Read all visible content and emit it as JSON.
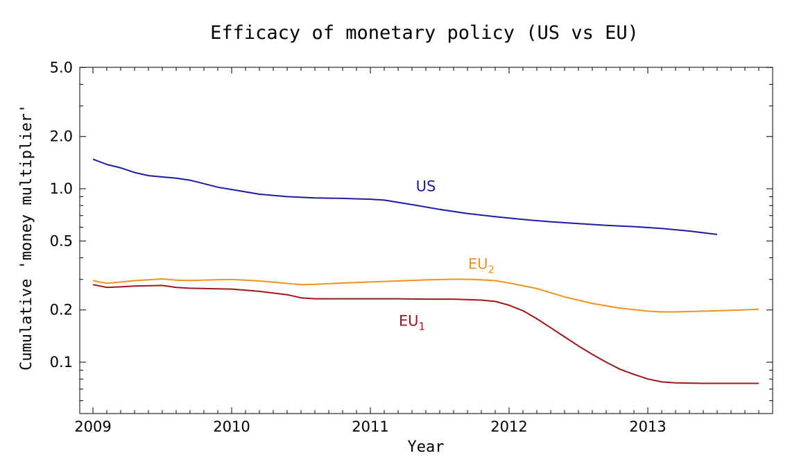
{
  "chart_data": {
    "type": "line",
    "title": "Efficacy of monetary policy (US vs EU)",
    "xlabel": "Year",
    "ylabel": "Cumulative 'money multiplier'",
    "yscale": "log",
    "xlim": [
      2009.0,
      2013.9
    ],
    "ylim": [
      0.05,
      5.0
    ],
    "xticks": [
      {
        "value": 2009,
        "label": "2009"
      },
      {
        "value": 2010,
        "label": "2010"
      },
      {
        "value": 2011,
        "label": "2011"
      },
      {
        "value": 2012,
        "label": "2012"
      },
      {
        "value": 2013,
        "label": "2013"
      }
    ],
    "yticks": [
      {
        "value": 0.1,
        "label": "0.1"
      },
      {
        "value": 0.2,
        "label": "0.2"
      },
      {
        "value": 0.5,
        "label": "0.5"
      },
      {
        "value": 1.0,
        "label": "1.0"
      },
      {
        "value": 2.0,
        "label": "2.0"
      },
      {
        "value": 5.0,
        "label": "5.0"
      }
    ],
    "series": [
      {
        "name": "US",
        "label_main": "US",
        "label_sub": "",
        "label_at": [
          2011.4,
          0.97
        ],
        "color": "#1a1aa6",
        "x": [
          2009.0,
          2009.1,
          2009.2,
          2009.3,
          2009.4,
          2009.5,
          2009.6,
          2009.7,
          2009.8,
          2009.9,
          2010.0,
          2010.2,
          2010.4,
          2010.6,
          2010.8,
          2011.0,
          2011.1,
          2011.3,
          2011.5,
          2011.7,
          2011.9,
          2012.1,
          2012.3,
          2012.5,
          2012.7,
          2012.9,
          2013.1,
          2013.3,
          2013.5
        ],
        "y": [
          1.48,
          1.38,
          1.32,
          1.24,
          1.19,
          1.17,
          1.15,
          1.12,
          1.07,
          1.02,
          0.99,
          0.93,
          0.9,
          0.885,
          0.88,
          0.87,
          0.86,
          0.81,
          0.76,
          0.72,
          0.69,
          0.665,
          0.645,
          0.63,
          0.615,
          0.605,
          0.59,
          0.57,
          0.545
        ]
      },
      {
        "name": "EU2",
        "label_main": "EU",
        "label_sub": "2",
        "label_at": [
          2011.8,
          0.345
        ],
        "color": "#f5901e",
        "x": [
          2009.0,
          2009.1,
          2009.2,
          2009.3,
          2009.5,
          2009.6,
          2009.7,
          2009.9,
          2010.0,
          2010.2,
          2010.5,
          2010.6,
          2010.8,
          2011.0,
          2011.2,
          2011.4,
          2011.6,
          2011.75,
          2011.9,
          2012.0,
          2012.2,
          2012.4,
          2012.6,
          2012.8,
          2013.0,
          2013.1,
          2013.2,
          2013.4,
          2013.6,
          2013.8
        ],
        "y": [
          0.295,
          0.285,
          0.29,
          0.295,
          0.302,
          0.297,
          0.296,
          0.299,
          0.3,
          0.294,
          0.28,
          0.281,
          0.286,
          0.29,
          0.294,
          0.298,
          0.301,
          0.3,
          0.295,
          0.286,
          0.266,
          0.238,
          0.218,
          0.205,
          0.197,
          0.195,
          0.195,
          0.197,
          0.199,
          0.202
        ]
      },
      {
        "name": "EU1",
        "label_main": "EU",
        "label_sub": "1",
        "label_at": [
          2011.3,
          0.162
        ],
        "color": "#a01515",
        "x": [
          2009.0,
          2009.1,
          2009.2,
          2009.3,
          2009.5,
          2009.6,
          2009.7,
          2009.9,
          2010.0,
          2010.2,
          2010.4,
          2010.5,
          2010.6,
          2010.8,
          2011.0,
          2011.2,
          2011.4,
          2011.6,
          2011.8,
          2011.9,
          2012.0,
          2012.1,
          2012.2,
          2012.3,
          2012.4,
          2012.5,
          2012.6,
          2012.7,
          2012.8,
          2012.9,
          2013.0,
          2013.1,
          2013.2,
          2013.4,
          2013.6,
          2013.8
        ],
        "y": [
          0.28,
          0.27,
          0.272,
          0.275,
          0.277,
          0.27,
          0.267,
          0.265,
          0.264,
          0.256,
          0.245,
          0.235,
          0.232,
          0.232,
          0.232,
          0.232,
          0.231,
          0.231,
          0.228,
          0.224,
          0.213,
          0.198,
          0.178,
          0.158,
          0.14,
          0.124,
          0.111,
          0.1,
          0.091,
          0.085,
          0.08,
          0.077,
          0.076,
          0.0755,
          0.0755,
          0.0755
        ]
      }
    ]
  }
}
